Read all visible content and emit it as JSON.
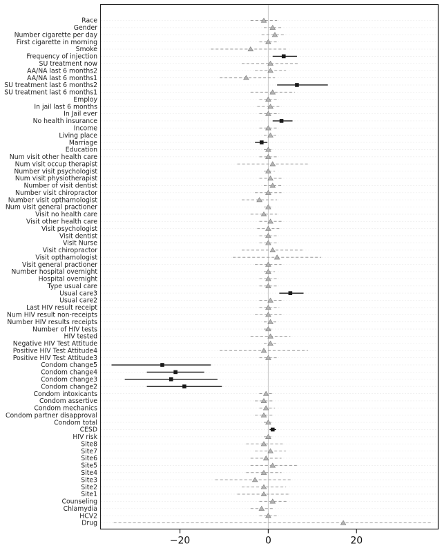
{
  "figure": {
    "background": "#ffffff",
    "description": "Forest plot of regression coefficient estimates with confidence intervals for 71 covariates; significant estimates drawn as black squares with solid lines, non-significant as gray triangles with dashed lines."
  },
  "chart_data": {
    "type": "scatter",
    "subtype": "forest-plot",
    "title": "",
    "xlabel": "",
    "ylabel": "",
    "xlim": [
      -38,
      38.5
    ],
    "x_ticks": [
      -20,
      0,
      20
    ],
    "x_tick_labels": [
      "−20",
      "0",
      "20"
    ],
    "reference_line_x": 0,
    "grid": "faint dotted horizontal line per row",
    "legend": "none",
    "colors": {
      "nonsignificant": "#999999",
      "nonsignificant_marker_fill": "#b3b3b3",
      "nonsignificant_marker_stroke": "#7a7a7a",
      "significant": "#1a1a1a",
      "reference_line": "#c4c4c4",
      "frame": "#222222",
      "grid": "#dedede",
      "label_text": "#222222",
      "tick_text": "#111111"
    },
    "rows": [
      {
        "label": "Race",
        "est": -1,
        "lo": -4,
        "hi": 2,
        "sig": false
      },
      {
        "label": "Gender",
        "est": 1,
        "lo": -1,
        "hi": 3,
        "sig": false
      },
      {
        "label": "Number cigarette per day",
        "est": 1.5,
        "lo": -1.5,
        "hi": 4,
        "sig": false
      },
      {
        "label": "First cigarette in morning",
        "est": 0,
        "lo": -2,
        "hi": 2,
        "sig": false
      },
      {
        "label": "Smoke",
        "est": -4,
        "lo": -13,
        "hi": 4,
        "sig": false
      },
      {
        "label": "Frequency of injection",
        "est": 3.5,
        "lo": 1,
        "hi": 6.5,
        "sig": true
      },
      {
        "label": "SU treatment now",
        "est": 0.5,
        "lo": -6,
        "hi": 7,
        "sig": false
      },
      {
        "label": "AA/NA last 6 months2",
        "est": 0.5,
        "lo": -3,
        "hi": 4,
        "sig": false
      },
      {
        "label": "AA/NA last 6 months1",
        "est": -5,
        "lo": -11,
        "hi": 1.5,
        "sig": false
      },
      {
        "label": "SU treatment last 6 months2",
        "est": 6.5,
        "lo": 2,
        "hi": 13.5,
        "sig": true
      },
      {
        "label": "SU treatment last 6 months1",
        "est": 1,
        "lo": -4,
        "hi": 6,
        "sig": false
      },
      {
        "label": "Employ",
        "est": 0,
        "lo": -2,
        "hi": 2,
        "sig": false
      },
      {
        "label": "In jail last 6 months",
        "est": 0.5,
        "lo": -2.5,
        "hi": 3,
        "sig": false
      },
      {
        "label": "In Jail ever",
        "est": 0,
        "lo": -2,
        "hi": 2.5,
        "sig": false
      },
      {
        "label": "No health insurance",
        "est": 3,
        "lo": 1,
        "hi": 5.5,
        "sig": true
      },
      {
        "label": "Income",
        "est": 0,
        "lo": -2,
        "hi": 2,
        "sig": false
      },
      {
        "label": "Living place",
        "est": 0.5,
        "lo": -1,
        "hi": 2,
        "sig": false
      },
      {
        "label": "Marriage",
        "est": -1.5,
        "lo": -3,
        "hi": -0.2,
        "sig": true
      },
      {
        "label": "Education",
        "est": 0,
        "lo": -1,
        "hi": 1,
        "sig": false
      },
      {
        "label": "Num visit other health care",
        "est": 0,
        "lo": -2,
        "hi": 2,
        "sig": false
      },
      {
        "label": "Num visit occup therapist",
        "est": 1,
        "lo": -7,
        "hi": 9,
        "sig": false
      },
      {
        "label": "Number visit psychologist",
        "est": 0,
        "lo": -1,
        "hi": 1.5,
        "sig": false
      },
      {
        "label": "Num visit physiotherapist",
        "est": 0.5,
        "lo": -2,
        "hi": 3,
        "sig": false
      },
      {
        "label": "Number of visit dentist",
        "est": 1,
        "lo": -1,
        "hi": 3,
        "sig": false
      },
      {
        "label": "Number visit chiropractor",
        "est": 0,
        "lo": -3,
        "hi": 3,
        "sig": false
      },
      {
        "label": "Number visit opthamologist",
        "est": -2,
        "lo": -6,
        "hi": 2,
        "sig": false
      },
      {
        "label": "Num visit general practioner",
        "est": 0,
        "lo": -1,
        "hi": 1,
        "sig": false
      },
      {
        "label": "Visit no health care",
        "est": -1,
        "lo": -4,
        "hi": 2,
        "sig": false
      },
      {
        "label": "Visit other health care",
        "est": 0.5,
        "lo": -2,
        "hi": 3,
        "sig": false
      },
      {
        "label": "Visit psychologist",
        "est": 0,
        "lo": -2.5,
        "hi": 2.5,
        "sig": false
      },
      {
        "label": "Visit dentist",
        "est": 0,
        "lo": -2,
        "hi": 2,
        "sig": false
      },
      {
        "label": "Visit Nurse",
        "est": 0,
        "lo": -2,
        "hi": 2,
        "sig": false
      },
      {
        "label": "Visit chiropractor",
        "est": 1,
        "lo": -6,
        "hi": 8,
        "sig": false
      },
      {
        "label": "Visit opthamologist",
        "est": 2,
        "lo": -8,
        "hi": 12,
        "sig": false
      },
      {
        "label": "Visit general practioner",
        "est": 0,
        "lo": -3,
        "hi": 3,
        "sig": false
      },
      {
        "label": "Number hospital overnight",
        "est": 0,
        "lo": -1,
        "hi": 1.5,
        "sig": false
      },
      {
        "label": "Hospital overnight",
        "est": 0,
        "lo": -2,
        "hi": 2,
        "sig": false
      },
      {
        "label": "Type usual care",
        "est": 0,
        "lo": -2,
        "hi": 2,
        "sig": false
      },
      {
        "label": "Usual care3",
        "est": 5,
        "lo": 2.5,
        "hi": 8,
        "sig": true
      },
      {
        "label": "Usual care2",
        "est": 0.5,
        "lo": -2,
        "hi": 3,
        "sig": false
      },
      {
        "label": "Last HIV result receipt",
        "est": 0,
        "lo": -2,
        "hi": 2.5,
        "sig": false
      },
      {
        "label": "Num HIV result non-receipts",
        "est": 0,
        "lo": -3,
        "hi": 3,
        "sig": false
      },
      {
        "label": "Number HIV results receipts",
        "est": 0.5,
        "lo": -1,
        "hi": 2,
        "sig": false
      },
      {
        "label": "Number of HIV tests",
        "est": 0,
        "lo": -1,
        "hi": 1,
        "sig": false
      },
      {
        "label": "HIV tested",
        "est": 0.5,
        "lo": -4,
        "hi": 5,
        "sig": false
      },
      {
        "label": "Negative HIV Test Attitude",
        "est": 0.5,
        "lo": -1,
        "hi": 2,
        "sig": false
      },
      {
        "label": "Positive HIV Test Attitude4",
        "est": -1,
        "lo": -11,
        "hi": 9,
        "sig": false
      },
      {
        "label": "Positive HIV Test Attitude3",
        "est": 0,
        "lo": -2,
        "hi": 2,
        "sig": false
      },
      {
        "label": "Condom change5",
        "est": -24,
        "lo": -35.5,
        "hi": -13,
        "sig": true
      },
      {
        "label": "Condom change4",
        "est": -21,
        "lo": -27.5,
        "hi": -14.5,
        "sig": true
      },
      {
        "label": "Condom change3",
        "est": -22,
        "lo": -32.5,
        "hi": -11.5,
        "sig": true
      },
      {
        "label": "Condom change2",
        "est": -19,
        "lo": -27.5,
        "hi": -10.5,
        "sig": true
      },
      {
        "label": "Condom intoxicants",
        "est": -0.5,
        "lo": -2,
        "hi": 1,
        "sig": false
      },
      {
        "label": "Condom assertive",
        "est": -1,
        "lo": -3,
        "hi": 1,
        "sig": false
      },
      {
        "label": "Condom mechanics",
        "est": -0.5,
        "lo": -2,
        "hi": 1.5,
        "sig": false
      },
      {
        "label": "Condom partner disapproval",
        "est": -1,
        "lo": -3,
        "hi": 1,
        "sig": false
      },
      {
        "label": "Condom total",
        "est": 0,
        "lo": -1,
        "hi": 1,
        "sig": false
      },
      {
        "label": "CESD",
        "est": 1,
        "lo": 0.3,
        "hi": 1.8,
        "sig": true
      },
      {
        "label": "HIV risk",
        "est": 0,
        "lo": -1,
        "hi": 1,
        "sig": false
      },
      {
        "label": "Site8",
        "est": -1,
        "lo": -5,
        "hi": 3.5,
        "sig": false
      },
      {
        "label": "Site7",
        "est": 0.5,
        "lo": -3,
        "hi": 4,
        "sig": false
      },
      {
        "label": "Site6",
        "est": -0.5,
        "lo": -4,
        "hi": 3,
        "sig": false
      },
      {
        "label": "Site5",
        "est": 1,
        "lo": -4,
        "hi": 6.5,
        "sig": false
      },
      {
        "label": "Site4",
        "est": -1,
        "lo": -5,
        "hi": 3,
        "sig": false
      },
      {
        "label": "Site3",
        "est": -3,
        "lo": -12,
        "hi": 5.5,
        "sig": false
      },
      {
        "label": "Site2",
        "est": -1,
        "lo": -6,
        "hi": 4,
        "sig": false
      },
      {
        "label": "Site1",
        "est": -1,
        "lo": -7,
        "hi": 5,
        "sig": false
      },
      {
        "label": "Counseling",
        "est": 1,
        "lo": -2,
        "hi": 4.5,
        "sig": false
      },
      {
        "label": "Chlamydia",
        "est": -1.5,
        "lo": -4,
        "hi": 1,
        "sig": false
      },
      {
        "label": "HCV2",
        "est": 0,
        "lo": -2,
        "hi": 2,
        "sig": false
      },
      {
        "label": "Drug",
        "est": 17,
        "lo": -35,
        "hi": 37,
        "sig": false
      }
    ]
  }
}
